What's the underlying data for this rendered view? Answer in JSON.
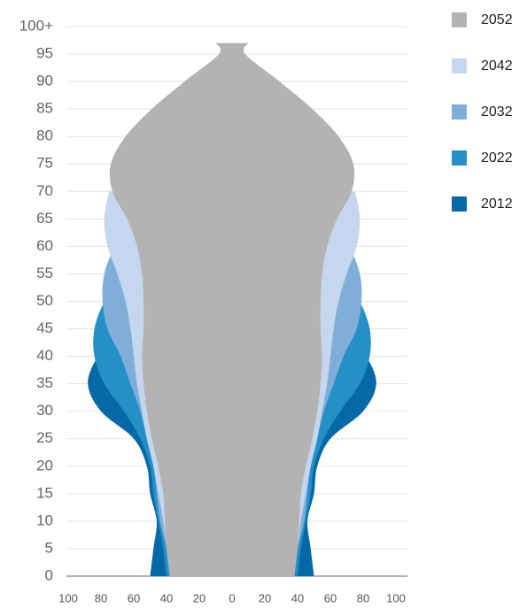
{
  "chart_data": {
    "type": "pyramid",
    "x": [
      0,
      5,
      10,
      15,
      20,
      25,
      30,
      35,
      40,
      45,
      50,
      55,
      60,
      65,
      70,
      75,
      80,
      85,
      90,
      95,
      97
    ],
    "series": [
      {
        "name": "2012",
        "color": "#0569a8",
        "values": [
          50,
          48,
          46,
          50,
          52,
          60,
          80,
          88,
          82,
          70,
          60,
          55,
          52,
          50,
          50,
          null,
          null,
          null,
          null,
          null,
          null
        ]
      },
      {
        "name": "2022",
        "color": "#2490c6",
        "values": [
          40,
          42,
          45,
          48,
          50,
          56,
          66,
          78,
          84,
          84,
          78,
          68,
          60,
          56,
          55,
          null,
          null,
          null,
          null,
          null,
          null
        ]
      },
      {
        "name": "2032",
        "color": "#7fafd9",
        "values": [
          37,
          40,
          44,
          46,
          48,
          52,
          56,
          62,
          68,
          76,
          79,
          78,
          72,
          66,
          60,
          null,
          null,
          null,
          null,
          null,
          null
        ]
      },
      {
        "name": "2042",
        "color": "#c5d7ee",
        "values": [
          38,
          40,
          42,
          45,
          48,
          52,
          55,
          58,
          60,
          62,
          65,
          70,
          76,
          78,
          75,
          null,
          null,
          null,
          null,
          null,
          null
        ]
      },
      {
        "name": "2052",
        "color": "#b3b3b3",
        "values": [
          38,
          40,
          41,
          42,
          45,
          49,
          52,
          54,
          55,
          54,
          54,
          55,
          58,
          64,
          73,
          74,
          65,
          49,
          29,
          8,
          10
        ]
      }
    ],
    "xlim": [
      -100,
      100
    ],
    "xticks": [
      {
        "value": -100,
        "label": "100"
      },
      {
        "value": -80,
        "label": "80"
      },
      {
        "value": -60,
        "label": "60"
      },
      {
        "value": -40,
        "label": "40"
      },
      {
        "value": -20,
        "label": "20"
      },
      0,
      20,
      40,
      60,
      80,
      100
    ],
    "ylim": [
      0,
      100
    ],
    "yticks": [
      0,
      5,
      10,
      15,
      20,
      25,
      30,
      35,
      40,
      45,
      50,
      55,
      60,
      65,
      70,
      75,
      80,
      85,
      90,
      95,
      {
        "value": 100,
        "label": "100+"
      }
    ],
    "grid": true
  }
}
